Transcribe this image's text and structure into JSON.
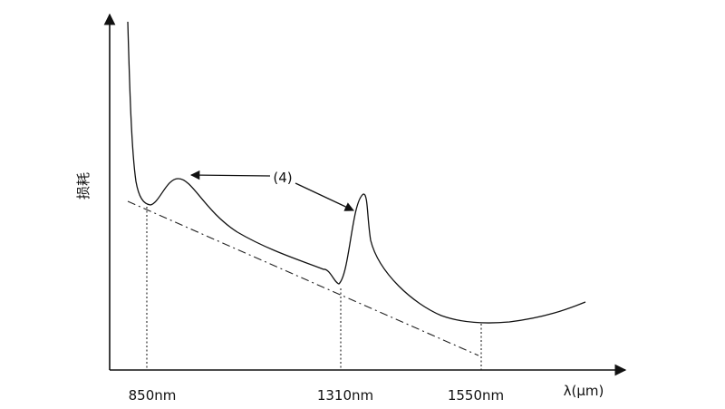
{
  "y_axis_label": "损耗",
  "x_axis_label": "λ(μm)",
  "annotation": "(4)",
  "x_ticks": [
    "850nm",
    "1310nm",
    "1550nm"
  ]
}
